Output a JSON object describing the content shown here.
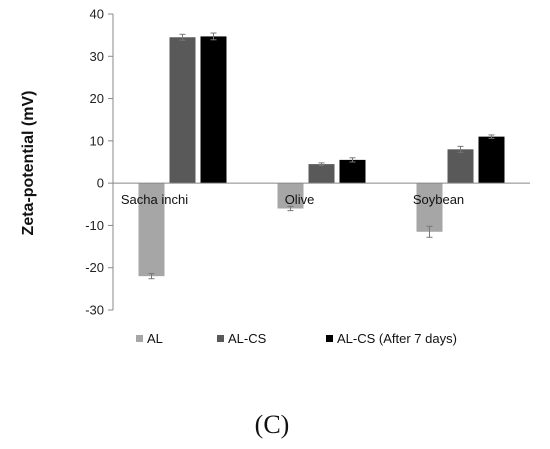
{
  "chart_data": {
    "type": "bar",
    "categories": [
      "Sacha inchi",
      "Olive",
      "Soybean"
    ],
    "series": [
      {
        "name": "AL",
        "values": [
          -22.0,
          -6.0,
          -11.5
        ],
        "errors": [
          0.6,
          0.5,
          1.3
        ],
        "color": "#a6a6a6"
      },
      {
        "name": "AL-CS",
        "values": [
          34.5,
          4.5,
          8.0
        ],
        "errors": [
          0.7,
          0.3,
          0.7
        ],
        "color": "#595959"
      },
      {
        "name": "AL-CS (After 7 days)",
        "values": [
          34.7,
          5.5,
          11.0
        ],
        "errors": [
          0.8,
          0.5,
          0.4
        ],
        "color": "#000000"
      }
    ],
    "ylabel": "Zeta-potential (mV)",
    "xlabel": "",
    "ylim": [
      -30,
      40
    ],
    "yticks": [
      40,
      30,
      20,
      10,
      0,
      -10,
      -20,
      -30
    ],
    "legend_position": "bottom",
    "grid": false
  },
  "panel_label": "(C)"
}
